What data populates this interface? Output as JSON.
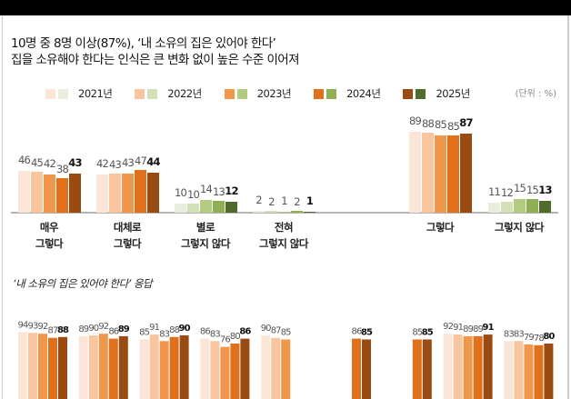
{
  "header": {
    "title_line1": "10명 중 8명 이상(87%), ‘내 소유의 집은 있어야 한다’",
    "title_line2": "집을 소유해야 한다는 인식은 큰 변화 없이 높은 수준 이어져",
    "unit": "(단위 : %)",
    "subtitle": "‘내 소유의 집은 있어야 한다’ 응답"
  },
  "legend": [
    {
      "label": "2021년",
      "orange": "#fbe5d6",
      "green": "#e8eddd"
    },
    {
      "label": "2022년",
      "orange": "#f8c59e",
      "green": "#d3dfb6"
    },
    {
      "label": "2023년",
      "orange": "#f1974c",
      "green": "#b3cb80"
    },
    {
      "label": "2024년",
      "orange": "#e0701a",
      "green": "#8fb052"
    },
    {
      "label": "2025년",
      "orange": "#9a4b12",
      "green": "#4f6c2c"
    }
  ],
  "chart_data": [
    {
      "type": "bar",
      "series": [
        "2021년",
        "2022년",
        "2023년",
        "2024년",
        "2025년"
      ],
      "categories": [
        "매우\n그렇다",
        "대체로\n그렇다",
        "별로\n그렇지 않다",
        "전혀\n그렇지 않다",
        "그렇다",
        "그렇지 않다"
      ],
      "palette": [
        "orange",
        "orange",
        "green",
        "green",
        "orange",
        "green"
      ],
      "values": [
        [
          46,
          45,
          42,
          38,
          43
        ],
        [
          42,
          43,
          43,
          47,
          44
        ],
        [
          10,
          10,
          14,
          13,
          12
        ],
        [
          2,
          2,
          1,
          2,
          1
        ],
        [
          89,
          88,
          85,
          85,
          87
        ],
        [
          11,
          12,
          15,
          15,
          13
        ]
      ],
      "ylim": [
        0,
        100
      ]
    },
    {
      "type": "bar",
      "title": "‘내 소유의 집은 있어야 한다’ 응답",
      "series": [
        "2021년",
        "2022년",
        "2023년",
        "2024년",
        "2025년"
      ],
      "values": [
        [
          94,
          93,
          92,
          87,
          88
        ],
        [
          89,
          90,
          92,
          86,
          89
        ],
        [
          85,
          91,
          83,
          88,
          90
        ],
        [
          86,
          83,
          76,
          80,
          86
        ],
        [
          90,
          87,
          85,
          null,
          null
        ],
        [
          null,
          null,
          null,
          86,
          85
        ],
        [
          null,
          null,
          null,
          85,
          85
        ],
        [
          92,
          91,
          89,
          89,
          91
        ],
        [
          83,
          83,
          79,
          78,
          80
        ]
      ],
      "ylim": [
        0,
        100
      ]
    }
  ]
}
